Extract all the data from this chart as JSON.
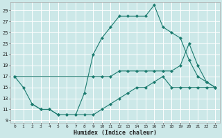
{
  "line1_x": [
    0,
    1,
    2,
    3,
    4,
    5,
    6,
    7,
    8,
    9,
    10,
    11,
    12,
    13,
    14,
    15,
    16,
    17,
    18,
    19,
    20,
    21,
    22,
    23
  ],
  "line1_y": [
    17,
    15,
    12,
    11,
    11,
    10,
    10,
    10,
    14,
    21,
    24,
    26,
    28,
    28,
    28,
    28,
    30,
    26,
    25,
    24,
    20,
    17,
    16,
    15
  ],
  "line2_x": [
    0,
    9,
    10,
    11,
    12,
    13,
    14,
    15,
    16,
    17,
    18,
    19,
    20,
    21,
    22,
    23
  ],
  "line2_y": [
    17,
    17,
    17,
    17,
    18,
    18,
    18,
    18,
    18,
    18,
    18,
    19,
    23,
    19,
    16,
    15
  ],
  "line3_x": [
    2,
    3,
    4,
    5,
    6,
    7,
    8,
    9,
    10,
    11,
    12,
    13,
    14,
    15,
    16,
    17,
    18,
    19,
    20,
    21,
    22,
    23
  ],
  "line3_y": [
    12,
    11,
    11,
    10,
    10,
    10,
    10,
    10,
    11,
    12,
    13,
    14,
    15,
    15,
    16,
    17,
    15,
    15,
    15,
    15,
    15,
    15
  ],
  "color": "#1a7a6e",
  "bg_color": "#cce8e8",
  "grid_color": "#ffffff",
  "xlabel": "Humidex (Indice chaleur)",
  "xlim": [
    -0.5,
    23.5
  ],
  "ylim": [
    8.5,
    30.5
  ],
  "yticks": [
    9,
    11,
    13,
    15,
    17,
    19,
    21,
    23,
    25,
    27,
    29
  ]
}
